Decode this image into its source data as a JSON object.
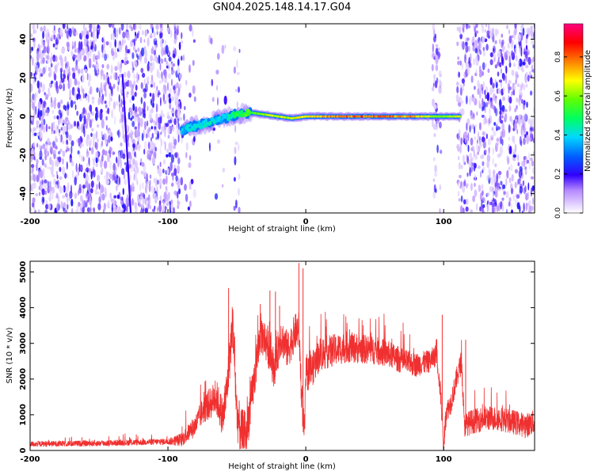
{
  "title": "GN04.2025.148.14.17.G04",
  "colors": {
    "line": "#f03030",
    "axis": "#000000"
  },
  "colorbar": {
    "label": "Normalized spectral amplitude",
    "ticks": [
      "0.0",
      "0.2",
      "0.4",
      "0.6",
      "0.8"
    ],
    "range": [
      0,
      0.97
    ],
    "colormap": "rainbow"
  },
  "chart_data": [
    {
      "type": "heatmap",
      "xlabel": "Height of straight line (km)",
      "ylabel": "Frequency (Hz)",
      "xlim": [
        -200,
        166
      ],
      "ylim": [
        -50,
        48
      ],
      "xticks": [
        "-200",
        "-100",
        "0",
        "100"
      ],
      "yticks": [
        "-40",
        "-20",
        "0",
        "20",
        "40"
      ],
      "carrier_ridge": {
        "x": [
          -90,
          -80,
          -70,
          -60,
          -50,
          -40,
          -30,
          -20,
          -10,
          0,
          20,
          40,
          60,
          80,
          90,
          95,
          100,
          112
        ],
        "y": [
          -7,
          -5,
          -3,
          -1,
          1,
          2,
          1,
          0,
          -1,
          0,
          0,
          0,
          0,
          0,
          0,
          0,
          0,
          0
        ],
        "amplitude": [
          0.4,
          0.45,
          0.45,
          0.4,
          0.55,
          0.6,
          0.65,
          0.7,
          0.7,
          0.75,
          0.85,
          0.85,
          0.85,
          0.8,
          0.7,
          0.6,
          0.65,
          0.7
        ]
      },
      "streak": {
        "x": [
          -133,
          -127
        ],
        "y": [
          22,
          -50
        ],
        "amplitude": 0.2
      },
      "noise_regions": [
        {
          "x": [
            -200,
            -90
          ],
          "density": 1.0
        },
        {
          "x": [
            -90,
            -80
          ],
          "density": 0.2
        },
        {
          "x": [
            -70,
            -58
          ],
          "density": 0.12
        },
        {
          "x": [
            -52,
            -48
          ],
          "density": 0.35
        },
        {
          "x": [
            92,
            98
          ],
          "density": 0.7
        },
        {
          "x": [
            110,
            166
          ],
          "density": 0.9
        }
      ]
    },
    {
      "type": "line",
      "xlabel": "Height of straight line (km)",
      "ylabel": "SNR (10 * v/v)",
      "xlim": [
        -200,
        166
      ],
      "ylim": [
        0,
        5300
      ],
      "xticks": [
        "-200",
        "-100",
        "0",
        "100"
      ],
      "yticks": [
        "0",
        "1000",
        "2000",
        "3000",
        "4000",
        "5000"
      ],
      "envelope": {
        "x": [
          -200,
          -150,
          -100,
          -90,
          -80,
          -75,
          -70,
          -65,
          -60,
          -57,
          -53,
          -50,
          -47,
          -43,
          -38,
          -33,
          -28,
          -23,
          -18,
          -13,
          -8,
          -5,
          -3,
          -1,
          0,
          5,
          10,
          20,
          30,
          40,
          50,
          60,
          70,
          80,
          90,
          95,
          98,
          100,
          102,
          105,
          110,
          113,
          115,
          120,
          130,
          140,
          150,
          160,
          166
        ],
        "y": [
          180,
          200,
          250,
          300,
          700,
          1100,
          1300,
          1500,
          900,
          1800,
          3600,
          1000,
          500,
          500,
          1800,
          3300,
          3000,
          2300,
          3200,
          2800,
          3300,
          3400,
          1500,
          400,
          2100,
          2300,
          2700,
          2800,
          2900,
          2850,
          2800,
          2700,
          2500,
          2400,
          2500,
          2700,
          1500,
          150,
          1100,
          1300,
          2100,
          2500,
          700,
          800,
          900,
          900,
          800,
          700,
          800
        ]
      },
      "noise": {
        "x": [
          -200,
          -100,
          -85,
          -50,
          -40,
          0,
          100,
          120,
          166
        ],
        "y": [
          80,
          90,
          250,
          700,
          600,
          500,
          300,
          350,
          350
        ]
      }
    }
  ]
}
